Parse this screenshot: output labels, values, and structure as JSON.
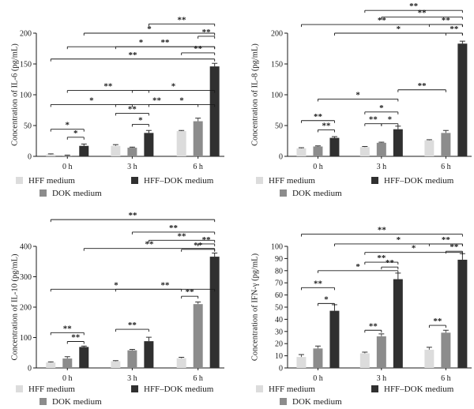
{
  "colors": {
    "hff": "#dcdcdc",
    "dok": "#8c8c8c",
    "hffdok": "#303030",
    "axis": "#1a1a1a"
  },
  "chart_data": [
    {
      "type": "bar",
      "categories": [
        "0 h",
        "3 h",
        "6 h"
      ],
      "ylabel": "Concentration of IL-6 (pg/mL)",
      "ylim": [
        0,
        200
      ],
      "yticks": [
        0,
        50,
        100,
        150,
        200
      ],
      "series": [
        {
          "name": "HFF medium",
          "values": [
            3,
            17,
            41
          ],
          "errors": [
            1,
            2,
            1
          ]
        },
        {
          "name": "DOK medium",
          "values": [
            1,
            14,
            57
          ],
          "errors": [
            1,
            1,
            5
          ]
        },
        {
          "name": "HFF–DOK medium",
          "values": [
            17,
            38,
            146
          ],
          "errors": [
            3,
            4,
            5
          ]
        }
      ],
      "annotations": [
        {
          "from": [
            0,
            0
          ],
          "to": [
            0,
            2
          ],
          "label": "*",
          "y": 44
        },
        {
          "from": [
            0,
            1
          ],
          "to": [
            0,
            2
          ],
          "label": "*",
          "y": 31
        },
        {
          "from": [
            0,
            0
          ],
          "to": [
            1,
            1
          ],
          "label": "*",
          "y": 84
        },
        {
          "from": [
            0,
            1
          ],
          "to": [
            1,
            2
          ],
          "label": "**",
          "y": 107
        },
        {
          "from": [
            1,
            0
          ],
          "to": [
            1,
            2
          ],
          "label": "**",
          "y": 70
        },
        {
          "from": [
            1,
            1
          ],
          "to": [
            1,
            2
          ],
          "label": "*",
          "y": 52
        },
        {
          "from": [
            1,
            0
          ],
          "to": [
            2,
            1
          ],
          "label": "**",
          "y": 84
        },
        {
          "from": [
            1,
            1
          ],
          "to": [
            2,
            2
          ],
          "label": "*",
          "y": 107
        },
        {
          "from": [
            1,
            2
          ],
          "to": [
            2,
            2
          ],
          "label": "*",
          "y": 84
        },
        {
          "from": [
            0,
            0
          ],
          "to": [
            2,
            2
          ],
          "label": "**",
          "y": 158
        },
        {
          "from": [
            0,
            2
          ],
          "to": [
            2,
            2
          ],
          "label": "*",
          "y": 200
        },
        {
          "from": [
            0,
            1
          ],
          "to": [
            2,
            2
          ],
          "label": "*",
          "y": 178
        },
        {
          "from": [
            1,
            0
          ],
          "to": [
            2,
            2
          ],
          "label": "**",
          "y": 178
        },
        {
          "from": [
            1,
            2
          ],
          "to": [
            2,
            2
          ],
          "label": "**",
          "y": 215
        },
        {
          "from": [
            2,
            0
          ],
          "to": [
            2,
            2
          ],
          "label": "**",
          "y": 168
        },
        {
          "from": [
            2,
            1
          ],
          "to": [
            2,
            2
          ],
          "label": "**",
          "y": 195
        }
      ]
    },
    {
      "type": "bar",
      "categories": [
        "0 h",
        "3 h",
        "6 h"
      ],
      "ylabel": "Concentration of IL-8 (pg/mL)",
      "ylim": [
        0,
        200
      ],
      "yticks": [
        0,
        50,
        100,
        150,
        200
      ],
      "series": [
        {
          "name": "HFF medium",
          "values": [
            13,
            15,
            26
          ],
          "errors": [
            1,
            1,
            1
          ]
        },
        {
          "name": "DOK medium",
          "values": [
            16,
            22,
            38
          ],
          "errors": [
            1,
            1,
            4
          ]
        },
        {
          "name": "HFF–DOK medium",
          "values": [
            30,
            44,
            183
          ],
          "errors": [
            2,
            5,
            4
          ]
        }
      ],
      "annotations": [
        {
          "from": [
            0,
            0
          ],
          "to": [
            0,
            2
          ],
          "label": "**",
          "y": 58
        },
        {
          "from": [
            0,
            1
          ],
          "to": [
            0,
            2
          ],
          "label": "**",
          "y": 43
        },
        {
          "from": [
            0,
            1
          ],
          "to": [
            1,
            2
          ],
          "label": "*",
          "y": 93
        },
        {
          "from": [
            1,
            0
          ],
          "to": [
            1,
            2
          ],
          "label": "*",
          "y": 72
        },
        {
          "from": [
            1,
            0
          ],
          "to": [
            1,
            1
          ],
          "label": "**",
          "y": 53
        },
        {
          "from": [
            1,
            1
          ],
          "to": [
            1,
            2
          ],
          "label": "*",
          "y": 53
        },
        {
          "from": [
            1,
            2
          ],
          "to": [
            2,
            1
          ],
          "label": "**",
          "y": 108
        },
        {
          "from": [
            0,
            2
          ],
          "to": [
            2,
            2
          ],
          "label": "*",
          "y": 200
        },
        {
          "from": [
            0,
            0
          ],
          "to": [
            2,
            2
          ],
          "label": "**",
          "y": 214
        },
        {
          "from": [
            1,
            0
          ],
          "to": [
            2,
            2
          ],
          "label": "**",
          "y": 237
        },
        {
          "from": [
            1,
            1
          ],
          "to": [
            2,
            2
          ],
          "label": "**",
          "y": 226
        },
        {
          "from": [
            2,
            0
          ],
          "to": [
            2,
            2
          ],
          "label": "**",
          "y": 214
        },
        {
          "from": [
            2,
            1
          ],
          "to": [
            2,
            2
          ],
          "label": "**",
          "y": 200
        }
      ]
    },
    {
      "type": "bar",
      "categories": [
        "0 h",
        "3 h",
        "6 h"
      ],
      "ylabel": "Concentration of IL-10 (pg/mL)",
      "ylim": [
        0,
        400
      ],
      "yticks": [
        0,
        100,
        200,
        300,
        400
      ],
      "series": [
        {
          "name": "HFF medium",
          "values": [
            18,
            22,
            32
          ],
          "errors": [
            2,
            2,
            3
          ]
        },
        {
          "name": "DOK medium",
          "values": [
            31,
            58,
            210
          ],
          "errors": [
            6,
            3,
            7
          ]
        },
        {
          "name": "HFF–DOK medium",
          "values": [
            69,
            88,
            366
          ],
          "errors": [
            3,
            13,
            12
          ]
        }
      ],
      "annotations": [
        {
          "from": [
            0,
            0
          ],
          "to": [
            0,
            2
          ],
          "label": "**",
          "y": 116
        },
        {
          "from": [
            0,
            1
          ],
          "to": [
            0,
            2
          ],
          "label": "**",
          "y": 87
        },
        {
          "from": [
            1,
            0
          ],
          "to": [
            1,
            2
          ],
          "label": "**",
          "y": 127
        },
        {
          "from": [
            0,
            0
          ],
          "to": [
            2,
            0
          ],
          "label": "*",
          "y": 259
        },
        {
          "from": [
            1,
            0
          ],
          "to": [
            2,
            2
          ],
          "label": "**",
          "y": 259
        },
        {
          "from": [
            2,
            0
          ],
          "to": [
            2,
            1
          ],
          "label": "**",
          "y": 236
        },
        {
          "from": [
            2,
            0
          ],
          "to": [
            2,
            2
          ],
          "label": "**",
          "y": 390
        },
        {
          "from": [
            0,
            2
          ],
          "to": [
            2,
            2
          ],
          "label": "**",
          "y": 393
        },
        {
          "from": [
            0,
            0
          ],
          "to": [
            2,
            2
          ],
          "label": "**",
          "y": 488
        },
        {
          "from": [
            1,
            1
          ],
          "to": [
            2,
            2
          ],
          "label": "**",
          "y": 447
        },
        {
          "from": [
            1,
            2
          ],
          "to": [
            2,
            2
          ],
          "label": "**",
          "y": 420
        },
        {
          "from": [
            2,
            1
          ],
          "to": [
            2,
            2
          ],
          "label": "**",
          "y": 408
        }
      ]
    },
    {
      "type": "bar",
      "categories": [
        "0 h",
        "3 h",
        "6 h"
      ],
      "ylabel": "Concentration of IFN-γ (pg/mL)",
      "ylim": [
        0,
        100
      ],
      "yticks": [
        0,
        10,
        20,
        30,
        40,
        50,
        60,
        70,
        80,
        90,
        100
      ],
      "series": [
        {
          "name": "HFF medium",
          "values": [
            9,
            12,
            15
          ],
          "errors": [
            2,
            1,
            2
          ]
        },
        {
          "name": "DOK medium",
          "values": [
            16,
            26,
            29
          ],
          "errors": [
            2,
            2,
            2
          ]
        },
        {
          "name": "HFF–DOK medium",
          "values": [
            47,
            73,
            89
          ],
          "errors": [
            5,
            5,
            5
          ]
        }
      ],
      "annotations": [
        {
          "from": [
            0,
            0
          ],
          "to": [
            0,
            2
          ],
          "label": "**",
          "y": 66
        },
        {
          "from": [
            0,
            1
          ],
          "to": [
            0,
            2
          ],
          "label": "*",
          "y": 53
        },
        {
          "from": [
            0,
            1
          ],
          "to": [
            1,
            2
          ],
          "label": "*",
          "y": 80
        },
        {
          "from": [
            1,
            0
          ],
          "to": [
            1,
            1
          ],
          "label": "**",
          "y": 31
        },
        {
          "from": [
            1,
            1
          ],
          "to": [
            1,
            2
          ],
          "label": "**",
          "y": 83
        },
        {
          "from": [
            1,
            0
          ],
          "to": [
            1,
            2
          ],
          "label": "**",
          "y": 87
        },
        {
          "from": [
            0,
            2
          ],
          "to": [
            2,
            2
          ],
          "label": "*",
          "y": 102
        },
        {
          "from": [
            1,
            0
          ],
          "to": [
            2,
            2
          ],
          "label": "*",
          "y": 95
        },
        {
          "from": [
            0,
            0
          ],
          "to": [
            2,
            2
          ],
          "label": "**",
          "y": 110
        },
        {
          "from": [
            2,
            0
          ],
          "to": [
            2,
            1
          ],
          "label": "**",
          "y": 35
        },
        {
          "from": [
            2,
            0
          ],
          "to": [
            2,
            2
          ],
          "label": "**",
          "y": 102
        },
        {
          "from": [
            2,
            1
          ],
          "to": [
            2,
            2
          ],
          "label": "**",
          "y": 96
        }
      ]
    }
  ],
  "legend": [
    {
      "label": "HFF medium",
      "color_key": "hff"
    },
    {
      "label": "HFF–DOK medium",
      "color_key": "hffdok"
    },
    {
      "label": "DOK medium",
      "color_key": "dok"
    }
  ]
}
